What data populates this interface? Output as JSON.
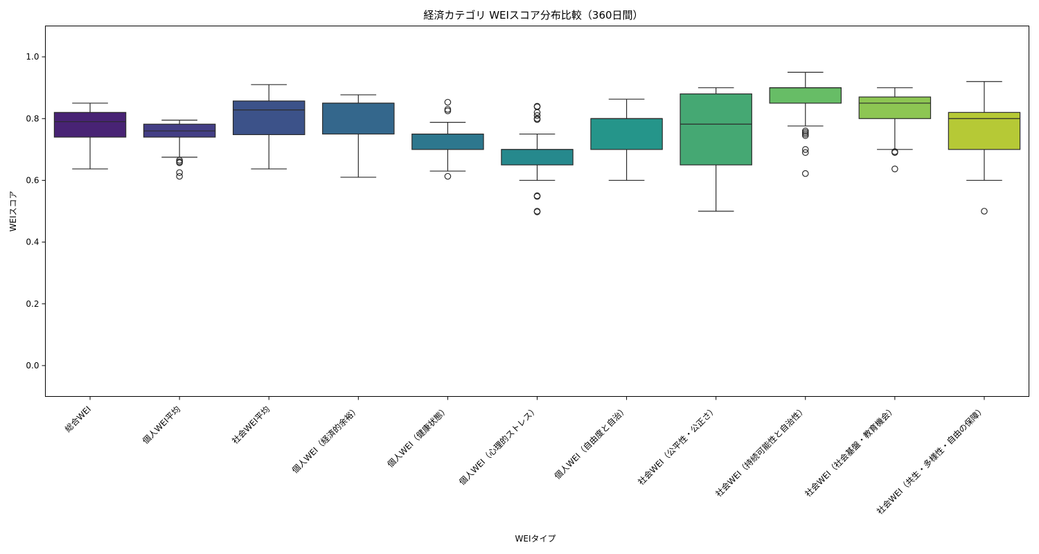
{
  "chart_data": {
    "type": "box",
    "title": "経済カテゴリ WEIスコア分布比較（360日間）",
    "xlabel": "WEIタイプ",
    "ylabel": "WEIスコア",
    "ylim": [
      -0.1,
      1.1
    ],
    "yticks": [
      0.0,
      0.2,
      0.4,
      0.6,
      0.8,
      1.0
    ],
    "ytick_labels": [
      "0.0",
      "0.2",
      "0.4",
      "0.6",
      "0.8",
      "1.0"
    ],
    "grid": false,
    "palette": "viridis",
    "categories": [
      "総合WEI",
      "個人WEI平均",
      "社会WEI平均",
      "個人WEI（経済的余裕）",
      "個人WEI（健康状態）",
      "個人WEI（心理的ストレス）",
      "個人WEI（自由度と自治）",
      "社会WEI（公平性・公正さ）",
      "社会WEI（持続可能性と自治性）",
      "社会WEI（社会基盤・教育機会）",
      "社会WEI（共生・多様性・自由の保障）"
    ],
    "boxes": [
      {
        "whisker_low": 0.637,
        "q1": 0.74,
        "median": 0.79,
        "q3": 0.82,
        "whisker_high": 0.85,
        "outliers": [],
        "color": "#482374"
      },
      {
        "whisker_low": 0.675,
        "q1": 0.74,
        "median": 0.76,
        "q3": 0.782,
        "whisker_high": 0.795,
        "outliers": [
          0.665,
          0.66,
          0.657,
          0.625,
          0.613
        ],
        "color": "#433e85"
      },
      {
        "whisker_low": 0.637,
        "q1": 0.748,
        "median": 0.828,
        "q3": 0.857,
        "whisker_high": 0.91,
        "outliers": [],
        "color": "#3c5289"
      },
      {
        "whisker_low": 0.61,
        "q1": 0.75,
        "median": 0.85,
        "q3": 0.85,
        "whisker_high": 0.877,
        "outliers": [],
        "color": "#34678c"
      },
      {
        "whisker_low": 0.63,
        "q1": 0.7,
        "median": 0.75,
        "q3": 0.75,
        "whisker_high": 0.788,
        "outliers": [
          0.853,
          0.83,
          0.825,
          0.613
        ],
        "color": "#2d778e"
      },
      {
        "whisker_low": 0.6,
        "q1": 0.65,
        "median": 0.7,
        "q3": 0.7,
        "whisker_high": 0.75,
        "outliers": [
          0.84,
          0.838,
          0.82,
          0.81,
          0.8,
          0.797,
          0.55,
          0.548,
          0.5,
          0.498
        ],
        "color": "#26898d"
      },
      {
        "whisker_low": 0.6,
        "q1": 0.7,
        "median": 0.8,
        "q3": 0.8,
        "whisker_high": 0.863,
        "outliers": [],
        "color": "#25958a"
      },
      {
        "whisker_low": 0.5,
        "q1": 0.65,
        "median": 0.782,
        "q3": 0.88,
        "whisker_high": 0.9,
        "outliers": [],
        "color": "#45a873"
      },
      {
        "whisker_low": 0.776,
        "q1": 0.85,
        "median": 0.9,
        "q3": 0.9,
        "whisker_high": 0.95,
        "outliers": [
          0.76,
          0.755,
          0.75,
          0.745,
          0.7,
          0.69,
          0.622
        ],
        "color": "#67bd66"
      },
      {
        "whisker_low": 0.7,
        "q1": 0.8,
        "median": 0.85,
        "q3": 0.87,
        "whisker_high": 0.9,
        "outliers": [
          0.693,
          0.69,
          0.637
        ],
        "color": "#8dc653"
      },
      {
        "whisker_low": 0.6,
        "q1": 0.7,
        "median": 0.8,
        "q3": 0.82,
        "whisker_high": 0.92,
        "outliers": [
          0.5
        ],
        "color": "#b6c936"
      }
    ]
  }
}
